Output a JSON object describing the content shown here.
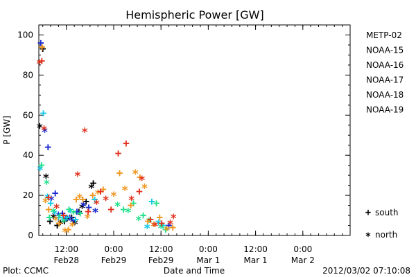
{
  "chart_data": {
    "type": "scatter",
    "title": "Hemispheric Power [GW]",
    "ylabel": "P [GW]",
    "xlabel": "Date and Time",
    "ylim": [
      0,
      105
    ],
    "yticks": [
      0,
      20,
      40,
      60,
      80,
      100
    ],
    "xlim": [
      "2012-02-28T05:00",
      "2012-03-02T12:00"
    ],
    "xticks": [
      {
        "time": "2012-02-28T12:00",
        "hour": "12:00",
        "day": "Feb28"
      },
      {
        "time": "2012-02-29T00:00",
        "hour": "0:00",
        "day": "Feb29"
      },
      {
        "time": "2012-02-29T12:00",
        "hour": "12:00",
        "day": "Feb29"
      },
      {
        "time": "2012-03-01T00:00",
        "hour": "0:00",
        "day": "Mar 1"
      },
      {
        "time": "2012-03-01T12:00",
        "hour": "12:00",
        "day": "Mar 1"
      },
      {
        "time": "2012-03-02T00:00",
        "hour": "0:00",
        "day": "Mar 2"
      }
    ],
    "hemisphere_legend": [
      {
        "symbol": "+",
        "label": "south"
      },
      {
        "symbol": "*",
        "label": "north"
      }
    ],
    "series": [
      {
        "name": "METP-02",
        "color": "#000000",
        "points": [
          [
            "2012-02-28T05:15",
            54,
            "*"
          ],
          [
            "2012-02-28T06:00",
            93,
            "+"
          ],
          [
            "2012-02-28T06:50",
            29,
            "*"
          ],
          [
            "2012-02-28T07:50",
            7,
            "+"
          ],
          [
            "2012-02-28T08:40",
            9,
            "*"
          ],
          [
            "2012-02-28T09:40",
            5,
            "+"
          ],
          [
            "2012-02-28T10:30",
            6,
            "*"
          ],
          [
            "2012-02-28T11:30",
            7,
            "+"
          ],
          [
            "2012-02-28T12:20",
            8,
            "*"
          ],
          [
            "2012-02-28T13:20",
            9,
            "+"
          ],
          [
            "2012-02-28T14:10",
            6,
            "*"
          ],
          [
            "2012-02-28T15:10",
            12,
            "+"
          ],
          [
            "2012-02-28T16:00",
            14,
            "*"
          ],
          [
            "2012-02-28T17:00",
            17,
            "+"
          ],
          [
            "2012-02-28T18:20",
            24,
            "*"
          ],
          [
            "2012-02-28T18:50",
            26,
            "+"
          ]
        ]
      },
      {
        "name": "NOAA-15",
        "color": "#1a2ad0",
        "points": [
          [
            "2012-02-28T05:30",
            96,
            "+"
          ],
          [
            "2012-02-28T06:30",
            52,
            "*"
          ],
          [
            "2012-02-28T07:20",
            44,
            "+"
          ],
          [
            "2012-02-28T08:10",
            18,
            "*"
          ],
          [
            "2012-02-28T09:10",
            21,
            "+"
          ],
          [
            "2012-02-28T10:00",
            10,
            "*"
          ],
          [
            "2012-02-28T11:00",
            11,
            "+"
          ],
          [
            "2012-02-28T11:50",
            8,
            "*"
          ],
          [
            "2012-02-28T12:50",
            9,
            "+"
          ],
          [
            "2012-02-28T13:40",
            7,
            "*"
          ],
          [
            "2012-02-28T14:40",
            12,
            "+"
          ],
          [
            "2012-02-28T16:20",
            15,
            "*"
          ],
          [
            "2012-02-28T17:40",
            14,
            "+"
          ],
          [
            "2012-02-28T19:20",
            12,
            "*"
          ],
          [
            "2012-02-29T14:00",
            5,
            "+"
          ]
        ]
      },
      {
        "name": "NOAA-16",
        "color": "#11c8e8",
        "points": [
          [
            "2012-02-28T05:20",
            33,
            "*"
          ],
          [
            "2012-02-28T06:10",
            61,
            "+"
          ],
          [
            "2012-02-28T07:10",
            19,
            "*"
          ],
          [
            "2012-02-28T08:00",
            16,
            "+"
          ],
          [
            "2012-02-28T09:00",
            11,
            "*"
          ],
          [
            "2012-02-28T10:00",
            9,
            "+"
          ],
          [
            "2012-02-28T11:10",
            8,
            "*"
          ],
          [
            "2012-02-28T12:10",
            9,
            "+"
          ],
          [
            "2012-02-28T13:00",
            12,
            "*"
          ],
          [
            "2012-02-28T14:20",
            8,
            "+"
          ],
          [
            "2012-02-28T19:10",
            18,
            "+"
          ],
          [
            "2012-02-29T08:30",
            4,
            "*"
          ],
          [
            "2012-02-29T09:40",
            17,
            "+"
          ],
          [
            "2012-02-29T11:20",
            6,
            "*"
          ],
          [
            "2012-02-29T12:30",
            5,
            "+"
          ]
        ]
      },
      {
        "name": "NOAA-17",
        "color": "#22e08a",
        "points": [
          [
            "2012-02-28T05:40",
            35,
            "+"
          ],
          [
            "2012-02-28T07:00",
            26,
            "*"
          ],
          [
            "2012-02-28T07:40",
            9,
            "+"
          ],
          [
            "2012-02-28T08:40",
            12,
            "*"
          ],
          [
            "2012-02-28T10:20",
            10,
            "+"
          ],
          [
            "2012-02-28T11:20",
            7,
            "*"
          ],
          [
            "2012-02-28T12:40",
            13,
            "+"
          ],
          [
            "2012-02-28T13:50",
            11,
            "*"
          ],
          [
            "2012-02-28T15:30",
            11,
            "+"
          ],
          [
            "2012-02-29T01:00",
            15,
            "*"
          ],
          [
            "2012-02-29T02:30",
            13,
            "+"
          ],
          [
            "2012-02-29T03:40",
            12,
            "*"
          ],
          [
            "2012-02-29T05:00",
            16,
            "+"
          ],
          [
            "2012-02-29T06:20",
            8,
            "*"
          ],
          [
            "2012-02-29T07:30",
            10,
            "+"
          ],
          [
            "2012-02-29T09:00",
            7,
            "*"
          ],
          [
            "2012-02-29T10:50",
            16,
            "+"
          ],
          [
            "2012-02-29T12:00",
            4,
            "*"
          ],
          [
            "2012-02-29T13:10",
            3,
            "+"
          ]
        ]
      },
      {
        "name": "NOAA-18",
        "color": "#f0961e",
        "points": [
          [
            "2012-02-28T05:50",
            94,
            "+"
          ],
          [
            "2012-02-28T06:40",
            17,
            "*"
          ],
          [
            "2012-02-28T07:30",
            13,
            "+"
          ],
          [
            "2012-02-28T09:20",
            8,
            "*"
          ],
          [
            "2012-02-28T10:10",
            6,
            "+"
          ],
          [
            "2012-02-28T11:40",
            2,
            "*"
          ],
          [
            "2012-02-28T12:30",
            3,
            "+"
          ],
          [
            "2012-02-28T13:30",
            5,
            "*"
          ],
          [
            "2012-02-28T14:30",
            18,
            "+"
          ],
          [
            "2012-02-28T15:20",
            19,
            "*"
          ],
          [
            "2012-02-28T16:10",
            18,
            "+"
          ],
          [
            "2012-02-28T17:20",
            9,
            "*"
          ],
          [
            "2012-02-28T18:40",
            20,
            "+"
          ],
          [
            "2012-02-28T20:00",
            21,
            "*"
          ],
          [
            "2012-02-28T21:20",
            23,
            "+"
          ],
          [
            "2012-02-29T00:00",
            20,
            "*"
          ],
          [
            "2012-02-29T01:30",
            31,
            "+"
          ],
          [
            "2012-02-29T02:50",
            23,
            "*"
          ],
          [
            "2012-02-29T04:20",
            15,
            "+"
          ],
          [
            "2012-02-29T05:30",
            31,
            "*"
          ],
          [
            "2012-02-29T06:40",
            29,
            "+"
          ],
          [
            "2012-02-29T07:50",
            24,
            "*"
          ],
          [
            "2012-02-29T08:40",
            7,
            "+"
          ],
          [
            "2012-02-29T10:10",
            5,
            "*"
          ],
          [
            "2012-02-29T11:40",
            9,
            "+"
          ],
          [
            "2012-02-29T13:30",
            3,
            "*"
          ],
          [
            "2012-02-29T15:00",
            4,
            "+"
          ]
        ]
      },
      {
        "name": "NOAA-19",
        "color": "#e0321e",
        "points": [
          [
            "2012-02-28T05:10",
            86,
            "*"
          ],
          [
            "2012-02-28T05:45",
            87,
            "+"
          ],
          [
            "2012-02-28T06:20",
            53,
            "*"
          ],
          [
            "2012-02-28T07:30",
            19,
            "+"
          ],
          [
            "2012-02-28T09:30",
            14,
            "*"
          ],
          [
            "2012-02-28T11:20",
            10,
            "+"
          ],
          [
            "2012-02-28T14:50",
            30,
            "*"
          ],
          [
            "2012-02-28T16:40",
            52,
            "*"
          ],
          [
            "2012-02-28T17:30",
            12,
            "+"
          ],
          [
            "2012-02-28T19:40",
            16,
            "*"
          ],
          [
            "2012-02-28T20:40",
            22,
            "+"
          ],
          [
            "2012-02-28T22:00",
            18,
            "*"
          ],
          [
            "2012-02-28T23:20",
            13,
            "+"
          ],
          [
            "2012-02-29T01:10",
            41,
            "+"
          ],
          [
            "2012-02-29T03:10",
            46,
            "+"
          ],
          [
            "2012-02-29T04:30",
            18,
            "*"
          ],
          [
            "2012-02-29T06:30",
            22,
            "+"
          ],
          [
            "2012-02-29T07:10",
            28,
            "*"
          ],
          [
            "2012-02-29T09:20",
            8,
            "+"
          ],
          [
            "2012-02-29T10:30",
            5,
            "*"
          ],
          [
            "2012-02-29T12:10",
            6,
            "+"
          ],
          [
            "2012-02-29T14:20",
            6,
            "*"
          ],
          [
            "2012-02-29T15:10",
            9,
            "*"
          ]
        ]
      }
    ]
  },
  "footer": {
    "plot_credit": "Plot: CCMC",
    "timestamp": "2012/03/02 07:10:08"
  }
}
